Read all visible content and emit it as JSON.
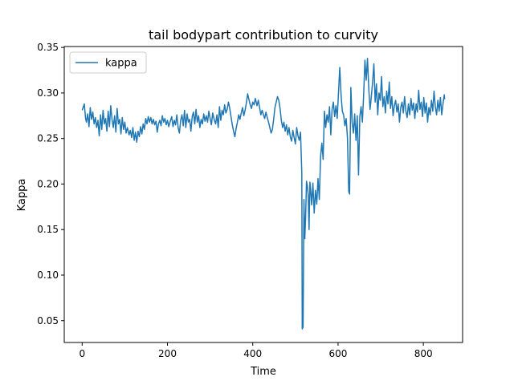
{
  "chart_data": {
    "type": "line",
    "title": "tail bodypart contribution to curvity",
    "xlabel": "Time",
    "ylabel": "Kappa",
    "xlim": [
      -42,
      892
    ],
    "ylim": [
      0.026,
      0.351
    ],
    "xticks": [
      0,
      200,
      400,
      600,
      800
    ],
    "yticks": [
      0.05,
      0.1,
      0.15,
      0.2,
      0.25,
      0.3,
      0.35
    ],
    "grid": false,
    "legend_position": "upper-left",
    "series": [
      {
        "name": "kappa",
        "color": "#1f77b4",
        "points": [
          [
            0,
            0.281
          ],
          [
            3,
            0.285
          ],
          [
            5,
            0.288
          ],
          [
            8,
            0.272
          ],
          [
            10,
            0.268
          ],
          [
            13,
            0.277
          ],
          [
            16,
            0.263
          ],
          [
            19,
            0.284
          ],
          [
            22,
            0.271
          ],
          [
            25,
            0.279
          ],
          [
            28,
            0.266
          ],
          [
            31,
            0.273
          ],
          [
            34,
            0.262
          ],
          [
            37,
            0.27
          ],
          [
            40,
            0.253
          ],
          [
            43,
            0.276
          ],
          [
            46,
            0.26
          ],
          [
            49,
            0.281
          ],
          [
            52,
            0.266
          ],
          [
            55,
            0.272
          ],
          [
            58,
            0.258
          ],
          [
            61,
            0.28
          ],
          [
            64,
            0.263
          ],
          [
            67,
            0.286
          ],
          [
            70,
            0.271
          ],
          [
            73,
            0.262
          ],
          [
            76,
            0.275
          ],
          [
            79,
            0.257
          ],
          [
            82,
            0.283
          ],
          [
            85,
            0.266
          ],
          [
            88,
            0.271
          ],
          [
            91,
            0.255
          ],
          [
            94,
            0.273
          ],
          [
            97,
            0.26
          ],
          [
            100,
            0.268
          ],
          [
            103,
            0.256
          ],
          [
            106,
            0.262
          ],
          [
            110,
            0.254
          ],
          [
            113,
            0.259
          ],
          [
            116,
            0.251
          ],
          [
            119,
            0.262
          ],
          [
            122,
            0.248
          ],
          [
            125,
            0.257
          ],
          [
            128,
            0.246
          ],
          [
            131,
            0.258
          ],
          [
            134,
            0.252
          ],
          [
            137,
            0.263
          ],
          [
            140,
            0.255
          ],
          [
            143,
            0.266
          ],
          [
            146,
            0.26
          ],
          [
            149,
            0.272
          ],
          [
            152,
            0.266
          ],
          [
            155,
            0.274
          ],
          [
            158,
            0.268
          ],
          [
            161,
            0.273
          ],
          [
            164,
            0.266
          ],
          [
            167,
            0.271
          ],
          [
            170,
            0.265
          ],
          [
            173,
            0.269
          ],
          [
            176,
            0.257
          ],
          [
            179,
            0.266
          ],
          [
            182,
            0.27
          ],
          [
            185,
            0.264
          ],
          [
            188,
            0.275
          ],
          [
            191,
            0.268
          ],
          [
            194,
            0.272
          ],
          [
            197,
            0.265
          ],
          [
            200,
            0.27
          ],
          [
            203,
            0.263
          ],
          [
            206,
            0.268
          ],
          [
            210,
            0.274
          ],
          [
            213,
            0.263
          ],
          [
            216,
            0.27
          ],
          [
            219,
            0.265
          ],
          [
            222,
            0.276
          ],
          [
            225,
            0.262
          ],
          [
            228,
            0.256
          ],
          [
            231,
            0.27
          ],
          [
            234,
            0.276
          ],
          [
            237,
            0.264
          ],
          [
            240,
            0.281
          ],
          [
            243,
            0.262
          ],
          [
            246,
            0.277
          ],
          [
            249,
            0.268
          ],
          [
            252,
            0.271
          ],
          [
            255,
            0.258
          ],
          [
            258,
            0.274
          ],
          [
            261,
            0.279
          ],
          [
            264,
            0.266
          ],
          [
            267,
            0.282
          ],
          [
            270,
            0.268
          ],
          [
            273,
            0.275
          ],
          [
            276,
            0.262
          ],
          [
            279,
            0.271
          ],
          [
            282,
            0.266
          ],
          [
            285,
            0.277
          ],
          [
            288,
            0.269
          ],
          [
            291,
            0.275
          ],
          [
            294,
            0.268
          ],
          [
            297,
            0.28
          ],
          [
            300,
            0.272
          ],
          [
            303,
            0.265
          ],
          [
            306,
            0.278
          ],
          [
            310,
            0.27
          ],
          [
            313,
            0.266
          ],
          [
            316,
            0.276
          ],
          [
            319,
            0.262
          ],
          [
            322,
            0.285
          ],
          [
            325,
            0.27
          ],
          [
            328,
            0.281
          ],
          [
            331,
            0.276
          ],
          [
            334,
            0.287
          ],
          [
            337,
            0.278
          ],
          [
            340,
            0.282
          ],
          [
            343,
            0.29
          ],
          [
            346,
            0.283
          ],
          [
            349,
            0.274
          ],
          [
            352,
            0.265
          ],
          [
            355,
            0.258
          ],
          [
            358,
            0.252
          ],
          [
            361,
            0.261
          ],
          [
            364,
            0.268
          ],
          [
            367,
            0.276
          ],
          [
            370,
            0.271
          ],
          [
            373,
            0.278
          ],
          [
            376,
            0.284
          ],
          [
            379,
            0.275
          ],
          [
            382,
            0.281
          ],
          [
            385,
            0.289
          ],
          [
            388,
            0.299
          ],
          [
            391,
            0.293
          ],
          [
            394,
            0.287
          ],
          [
            397,
            0.283
          ],
          [
            400,
            0.29
          ],
          [
            403,
            0.287
          ],
          [
            406,
            0.294
          ],
          [
            410,
            0.286
          ],
          [
            413,
            0.292
          ],
          [
            416,
            0.284
          ],
          [
            419,
            0.276
          ],
          [
            422,
            0.281
          ],
          [
            425,
            0.276
          ],
          [
            428,
            0.272
          ],
          [
            431,
            0.279
          ],
          [
            434,
            0.273
          ],
          [
            437,
            0.268
          ],
          [
            440,
            0.262
          ],
          [
            443,
            0.256
          ],
          [
            446,
            0.26
          ],
          [
            449,
            0.271
          ],
          [
            452,
            0.284
          ],
          [
            455,
            0.29
          ],
          [
            458,
            0.296
          ],
          [
            461,
            0.292
          ],
          [
            464,
            0.283
          ],
          [
            467,
            0.27
          ],
          [
            470,
            0.262
          ],
          [
            473,
            0.268
          ],
          [
            476,
            0.258
          ],
          [
            479,
            0.265
          ],
          [
            482,
            0.254
          ],
          [
            485,
            0.262
          ],
          [
            488,
            0.252
          ],
          [
            491,
            0.247
          ],
          [
            494,
            0.259
          ],
          [
            497,
            0.251
          ],
          [
            500,
            0.244
          ],
          [
            503,
            0.262
          ],
          [
            506,
            0.253
          ],
          [
            509,
            0.248
          ],
          [
            512,
            0.257
          ],
          [
            515,
            0.212
          ],
          [
            516,
            0.041
          ],
          [
            518,
            0.043
          ],
          [
            520,
            0.183
          ],
          [
            522,
            0.14
          ],
          [
            524,
            0.165
          ],
          [
            526,
            0.203
          ],
          [
            528,
            0.198
          ],
          [
            530,
            0.188
          ],
          [
            532,
            0.15
          ],
          [
            534,
            0.202
          ],
          [
            536,
            0.192
          ],
          [
            538,
            0.177
          ],
          [
            541,
            0.201
          ],
          [
            544,
            0.168
          ],
          [
            547,
            0.193
          ],
          [
            550,
            0.178
          ],
          [
            553,
            0.206
          ],
          [
            556,
            0.183
          ],
          [
            559,
            0.23
          ],
          [
            562,
            0.245
          ],
          [
            565,
            0.227
          ],
          [
            568,
            0.28
          ],
          [
            571,
            0.262
          ],
          [
            574,
            0.276
          ],
          [
            577,
            0.268
          ],
          [
            580,
            0.285
          ],
          [
            583,
            0.254
          ],
          [
            586,
            0.282
          ],
          [
            589,
            0.29
          ],
          [
            592,
            0.274
          ],
          [
            595,
            0.286
          ],
          [
            598,
            0.272
          ],
          [
            601,
            0.3
          ],
          [
            604,
            0.328
          ],
          [
            607,
            0.298
          ],
          [
            610,
            0.28
          ],
          [
            613,
            0.276
          ],
          [
            616,
            0.264
          ],
          [
            619,
            0.272
          ],
          [
            622,
            0.251
          ],
          [
            625,
            0.192
          ],
          [
            627,
            0.189
          ],
          [
            630,
            0.306
          ],
          [
            633,
            0.268
          ],
          [
            636,
            0.256
          ],
          [
            639,
            0.277
          ],
          [
            642,
            0.248
          ],
          [
            645,
            0.275
          ],
          [
            648,
            0.21
          ],
          [
            651,
            0.274
          ],
          [
            654,
            0.285
          ],
          [
            657,
            0.268
          ],
          [
            660,
            0.298
          ],
          [
            663,
            0.336
          ],
          [
            666,
            0.314
          ],
          [
            669,
            0.338
          ],
          [
            672,
            0.305
          ],
          [
            675,
            0.282
          ],
          [
            678,
            0.296
          ],
          [
            681,
            0.312
          ],
          [
            684,
            0.332
          ],
          [
            687,
            0.29
          ],
          [
            690,
            0.31
          ],
          [
            693,
            0.276
          ],
          [
            696,
            0.3
          ],
          [
            699,
            0.292
          ],
          [
            702,
            0.318
          ],
          [
            705,
            0.285
          ],
          [
            708,
            0.296
          ],
          [
            711,
            0.278
          ],
          [
            714,
            0.302
          ],
          [
            717,
            0.288
          ],
          [
            720,
            0.312
          ],
          [
            723,
            0.283
          ],
          [
            726,
            0.296
          ],
          [
            729,
            0.275
          ],
          [
            732,
            0.286
          ],
          [
            735,
            0.292
          ],
          [
            738,
            0.279
          ],
          [
            741,
            0.288
          ],
          [
            744,
            0.268
          ],
          [
            747,
            0.284
          ],
          [
            750,
            0.29
          ],
          [
            753,
            0.278
          ],
          [
            756,
            0.296
          ],
          [
            759,
            0.28
          ],
          [
            762,
            0.273
          ],
          [
            765,
            0.288
          ],
          [
            768,
            0.276
          ],
          [
            771,
            0.294
          ],
          [
            774,
            0.281
          ],
          [
            777,
            0.289
          ],
          [
            780,
            0.272
          ],
          [
            783,
            0.288
          ],
          [
            786,
            0.279
          ],
          [
            789,
            0.303
          ],
          [
            792,
            0.282
          ],
          [
            795,
            0.29
          ],
          [
            798,
            0.274
          ],
          [
            801,
            0.295
          ],
          [
            804,
            0.278
          ],
          [
            807,
            0.289
          ],
          [
            810,
            0.268
          ],
          [
            813,
            0.284
          ],
          [
            816,
            0.276
          ],
          [
            819,
            0.292
          ],
          [
            822,
            0.28
          ],
          [
            825,
            0.302
          ],
          [
            828,
            0.285
          ],
          [
            831,
            0.276
          ],
          [
            834,
            0.292
          ],
          [
            837,
            0.28
          ],
          [
            840,
            0.295
          ],
          [
            843,
            0.276
          ],
          [
            846,
            0.288
          ],
          [
            849,
            0.298
          ],
          [
            850,
            0.293
          ]
        ]
      }
    ]
  }
}
